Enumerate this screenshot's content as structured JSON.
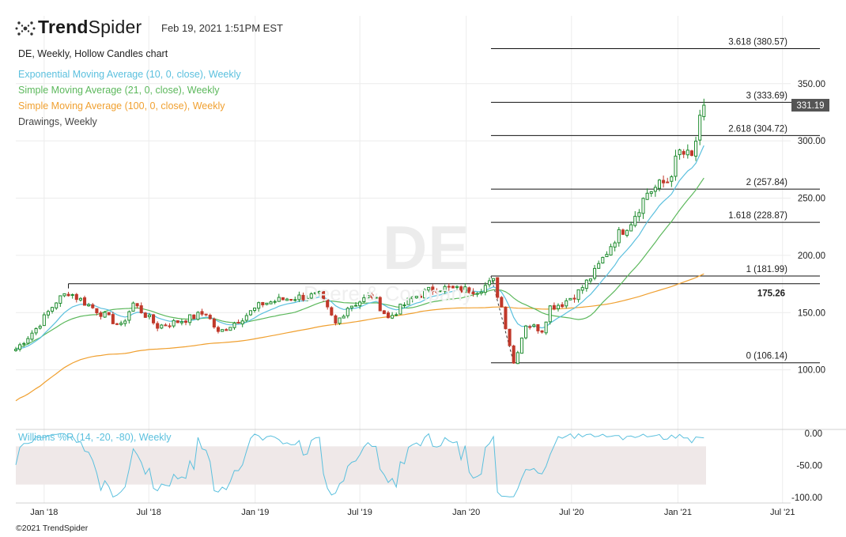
{
  "header": {
    "brand_bold": "Trend",
    "brand_light": "Spider",
    "date": "Feb 19, 2021 1:51PM EST",
    "logo_icon": "spider-dots-icon"
  },
  "legend": [
    {
      "label": "DE, Weekly, Hollow Candles chart",
      "color": "#222222"
    },
    {
      "label": "Exponential Moving Average (10, 0, close), Weekly",
      "color": "#5bc0de"
    },
    {
      "label": "Simple Moving Average (21, 0, close), Weekly",
      "color": "#5cb85c"
    },
    {
      "label": "Simple Moving Average (100, 0, close), Weekly",
      "color": "#f0a030"
    },
    {
      "label": "Drawings, Weekly",
      "color": "#444444"
    }
  ],
  "watermark": {
    "symbol": "DE",
    "name": "Deere & Company"
  },
  "footer": "©2021 TrendSpider",
  "chart_data": {
    "type": "candlestick",
    "symbol": "DE",
    "interval": "Weekly",
    "x_range": [
      "2017-11-13",
      "2021-07-15"
    ],
    "x_ticks": [
      {
        "label": "Jan '18",
        "date": "2018-01-01"
      },
      {
        "label": "Jul '18",
        "date": "2018-07-01"
      },
      {
        "label": "Jan '19",
        "date": "2019-01-01"
      },
      {
        "label": "Jul '19",
        "date": "2019-07-01"
      },
      {
        "label": "Jan '20",
        "date": "2020-01-01"
      },
      {
        "label": "Jul '20",
        "date": "2020-07-01"
      },
      {
        "label": "Jan '21",
        "date": "2021-01-01"
      },
      {
        "label": "Jul '21",
        "date": "2021-07-01"
      }
    ],
    "price_axis": {
      "ticks": [
        100,
        150,
        200,
        250,
        300,
        350
      ],
      "tick_labels": [
        "100.00",
        "150.00",
        "200.00",
        "250.00",
        "300.00",
        "350.00"
      ],
      "ylim": [
        50,
        392
      ]
    },
    "last_price": {
      "value": 331.19,
      "label": "331.19"
    },
    "anchor_points": [
      [
        "2017-11-13",
        118
      ],
      [
        "2017-12-18",
        136
      ],
      [
        "2018-01-22",
        160
      ],
      [
        "2018-02-12",
        168
      ],
      [
        "2018-04-02",
        152
      ],
      [
        "2018-05-14",
        138
      ],
      [
        "2018-06-04",
        158
      ],
      [
        "2018-07-16",
        138
      ],
      [
        "2018-08-27",
        143
      ],
      [
        "2018-10-08",
        150
      ],
      [
        "2018-10-29",
        132
      ],
      [
        "2018-12-17",
        148
      ],
      [
        "2019-01-14",
        158
      ],
      [
        "2019-03-04",
        163
      ],
      [
        "2019-04-22",
        165
      ],
      [
        "2019-05-20",
        140
      ],
      [
        "2019-06-10",
        155
      ],
      [
        "2019-07-22",
        165
      ],
      [
        "2019-08-19",
        145
      ],
      [
        "2019-09-30",
        163
      ],
      [
        "2019-11-11",
        172
      ],
      [
        "2019-12-16",
        170
      ],
      [
        "2020-01-20",
        170
      ],
      [
        "2020-02-17",
        177
      ],
      [
        "2020-03-02",
        155
      ],
      [
        "2020-03-23",
        106
      ],
      [
        "2020-04-13",
        140
      ],
      [
        "2020-05-11",
        135
      ],
      [
        "2020-05-25",
        155
      ],
      [
        "2020-06-15",
        158
      ],
      [
        "2020-07-13",
        168
      ],
      [
        "2020-08-10",
        185
      ],
      [
        "2020-09-14",
        215
      ],
      [
        "2020-10-12",
        230
      ],
      [
        "2020-11-09",
        255
      ],
      [
        "2020-12-14",
        265
      ],
      [
        "2021-01-04",
        290
      ],
      [
        "2021-01-25",
        285
      ],
      [
        "2021-02-15",
        331.19
      ]
    ],
    "fibonacci": {
      "levels": [
        {
          "ratio": "3.618",
          "price": 380.57,
          "label": "3.618 (380.57)"
        },
        {
          "ratio": "3",
          "price": 333.69,
          "label": "3 (333.69)"
        },
        {
          "ratio": "2.618",
          "price": 304.72,
          "label": "2.618 (304.72)"
        },
        {
          "ratio": "2",
          "price": 257.84,
          "label": "2 (257.84)"
        },
        {
          "ratio": "1.618",
          "price": 228.87,
          "label": "1.618 (228.87)"
        },
        {
          "ratio": "1",
          "price": 181.99,
          "label": "1 (181.99)"
        },
        {
          "ratio": "0",
          "price": 106.14,
          "label": "0 (106.14)"
        }
      ],
      "start_date": "2020-02-10"
    },
    "horizontal_line": {
      "price": 175.26,
      "label": "175.26",
      "start_date": "2018-02-12"
    },
    "williams_r": {
      "label": "Williams %R (14, -20, -80), Weekly",
      "tick_labels": [
        "0.00",
        "-50.00",
        "-100.00"
      ],
      "ticks": [
        0,
        -50,
        -100
      ],
      "overbought": -20,
      "oversold": -80,
      "ylim": [
        -104,
        4
      ]
    },
    "colors": {
      "up_candle": "#1e8c2e",
      "down_candle": "#c0392b",
      "ema10": "#5bc0de",
      "sma21": "#5cb85c",
      "sma100": "#f0a030",
      "williams": "#5bc0de",
      "band": "#efe8e8",
      "grid": "#ececec"
    }
  }
}
